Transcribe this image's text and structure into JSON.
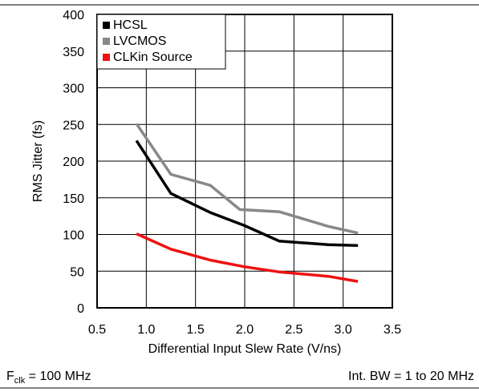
{
  "chart_data": {
    "type": "line",
    "xlabel": "Differential Input Slew Rate (V/ns)",
    "ylabel": "RMS Jitter (fs)",
    "xlim": [
      0.5,
      3.5
    ],
    "ylim": [
      0,
      400
    ],
    "x_ticks": [
      "0.5",
      "1.0",
      "1.5",
      "2.0",
      "2.5",
      "3.0",
      "3.5"
    ],
    "y_ticks": [
      "0",
      "50",
      "100",
      "150",
      "200",
      "250",
      "300",
      "350",
      "400"
    ],
    "grid": true,
    "legend_position": "top-left",
    "series": [
      {
        "name": "HCSL",
        "color": "#000000",
        "x": [
          0.9,
          1.25,
          1.65,
          2.0,
          2.35,
          2.85,
          3.15
        ],
        "y": [
          228,
          156,
          130,
          112,
          91,
          86,
          85
        ]
      },
      {
        "name": "LVCMOS",
        "color": "#888888",
        "x": [
          0.9,
          1.25,
          1.65,
          1.95,
          2.35,
          2.85,
          3.15
        ],
        "y": [
          251,
          182,
          167,
          134,
          131,
          111,
          102
        ]
      },
      {
        "name": "CLKin Source",
        "color": "#ee1111",
        "x": [
          0.9,
          1.25,
          1.65,
          2.0,
          2.35,
          2.85,
          3.15
        ],
        "y": [
          101,
          80,
          65,
          56,
          49,
          43,
          36
        ]
      }
    ]
  },
  "footer": {
    "left_main": "F",
    "left_sub": "clk",
    "left_rest": " = 100 MHz",
    "right": "Int. BW = 1 to 20 MHz"
  }
}
